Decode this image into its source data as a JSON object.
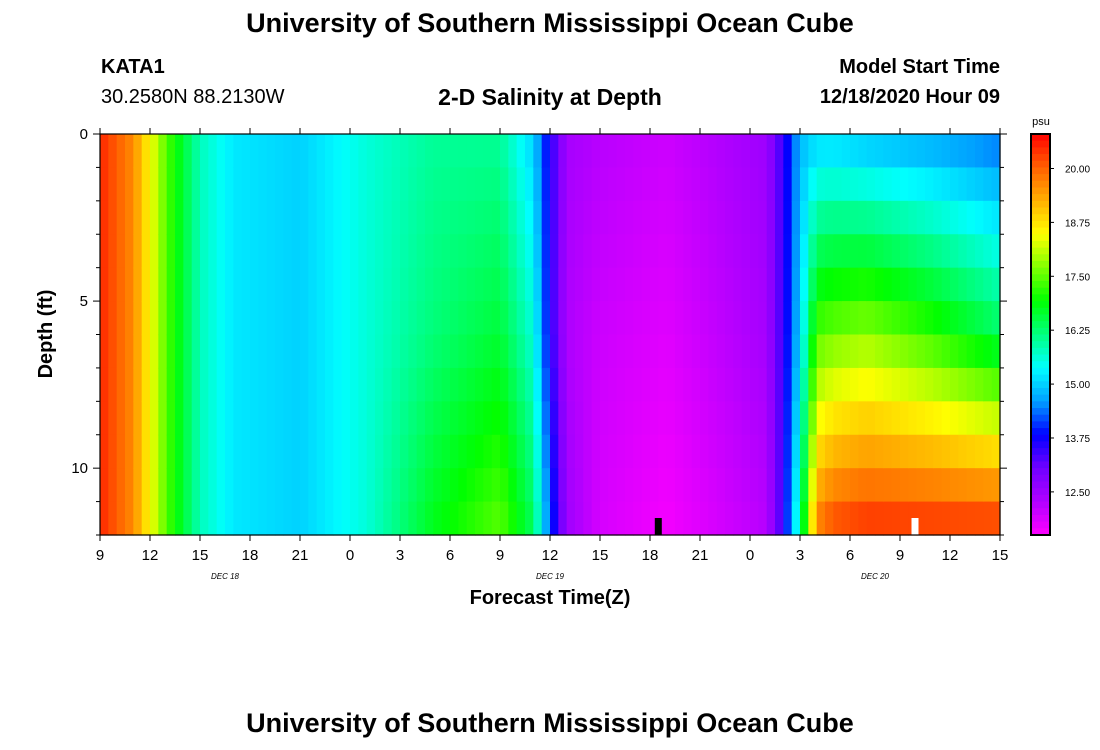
{
  "header": {
    "title": "University of Southern Mississippi Ocean Cube",
    "station_id": "KATA1",
    "station_coords": "30.2580N 88.2130W",
    "plot_title": "2-D Salinity at Depth",
    "model_label": "Model Start Time",
    "model_time": "12/18/2020 Hour 09"
  },
  "footer": {
    "title": "University of Southern Mississippi Ocean Cube"
  },
  "chart_data": {
    "type": "heatmap",
    "title": "2-D Salinity at Depth",
    "xlabel": "Forecast Time(Z)",
    "ylabel": "Depth (ft)",
    "x_tick_labels": [
      "9",
      "12",
      "15",
      "18",
      "21",
      "0",
      "3",
      "6",
      "9",
      "12",
      "15",
      "18",
      "21",
      "0",
      "3",
      "6",
      "9",
      "12",
      "15"
    ],
    "x_hours": [
      0,
      3,
      6,
      9,
      12,
      15,
      18,
      21,
      24,
      27,
      30,
      33,
      36,
      39,
      42,
      45,
      48,
      51,
      54
    ],
    "date_labels": [
      {
        "text": "DEC 18",
        "hour": 7.5
      },
      {
        "text": "DEC 19",
        "hour": 27
      },
      {
        "text": "DEC 20",
        "hour": 46.5
      }
    ],
    "y_tick_labels": [
      "0",
      "5",
      "10"
    ],
    "y_ticks": [
      0,
      5,
      10
    ],
    "ylim": [
      0,
      12
    ],
    "xlim": [
      0,
      54
    ],
    "colorbar": {
      "unit": "psu",
      "tick_labels": [
        "20.00",
        "18.75",
        "17.50",
        "16.25",
        "15.00",
        "13.75",
        "12.50"
      ],
      "ticks": [
        20.0,
        18.75,
        17.5,
        16.25,
        15.0,
        13.75,
        12.5
      ],
      "range": [
        11.5,
        20.8
      ],
      "colors": [
        "#ff00ff",
        "#b000ff",
        "#7000ff",
        "#0000ff",
        "#00a0ff",
        "#00ffff",
        "#00ff80",
        "#00ff00",
        "#80ff00",
        "#ffff00",
        "#ffb000",
        "#ff6000",
        "#ff0000"
      ]
    },
    "markers": [
      {
        "hour": 33.5,
        "color": "#000000"
      },
      {
        "hour": 48.9,
        "color": "#ffffff"
      }
    ],
    "depth_levels_ft": [
      0,
      2,
      4,
      6,
      8,
      10,
      12
    ],
    "salinity_psu_by_hour": {
      "hours": [
        0,
        2,
        4,
        5,
        6,
        8,
        12,
        16,
        20,
        24,
        26,
        27,
        28,
        30,
        34,
        40,
        41,
        42,
        43,
        44,
        46,
        50,
        54
      ],
      "surface": [
        20.5,
        19.6,
        17.4,
        16.6,
        15.8,
        15.2,
        15.0,
        15.6,
        16.0,
        16.0,
        15.0,
        13.6,
        12.4,
        12.2,
        12.0,
        12.5,
        13.5,
        14.8,
        15.0,
        15.0,
        14.8,
        14.6,
        14.3
      ],
      "mid": [
        20.5,
        19.6,
        17.4,
        16.6,
        15.8,
        15.2,
        15.0,
        15.6,
        16.2,
        16.6,
        15.6,
        13.6,
        12.3,
        12.0,
        11.8,
        12.4,
        13.5,
        15.0,
        17.4,
        17.6,
        17.8,
        17.2,
        16.4
      ],
      "bottom": [
        20.5,
        19.6,
        17.4,
        16.6,
        15.8,
        15.2,
        15.0,
        15.6,
        16.8,
        17.5,
        16.4,
        14.2,
        12.5,
        11.9,
        11.6,
        12.2,
        13.5,
        16.0,
        19.8,
        20.3,
        20.5,
        20.5,
        20.5
      ]
    }
  }
}
